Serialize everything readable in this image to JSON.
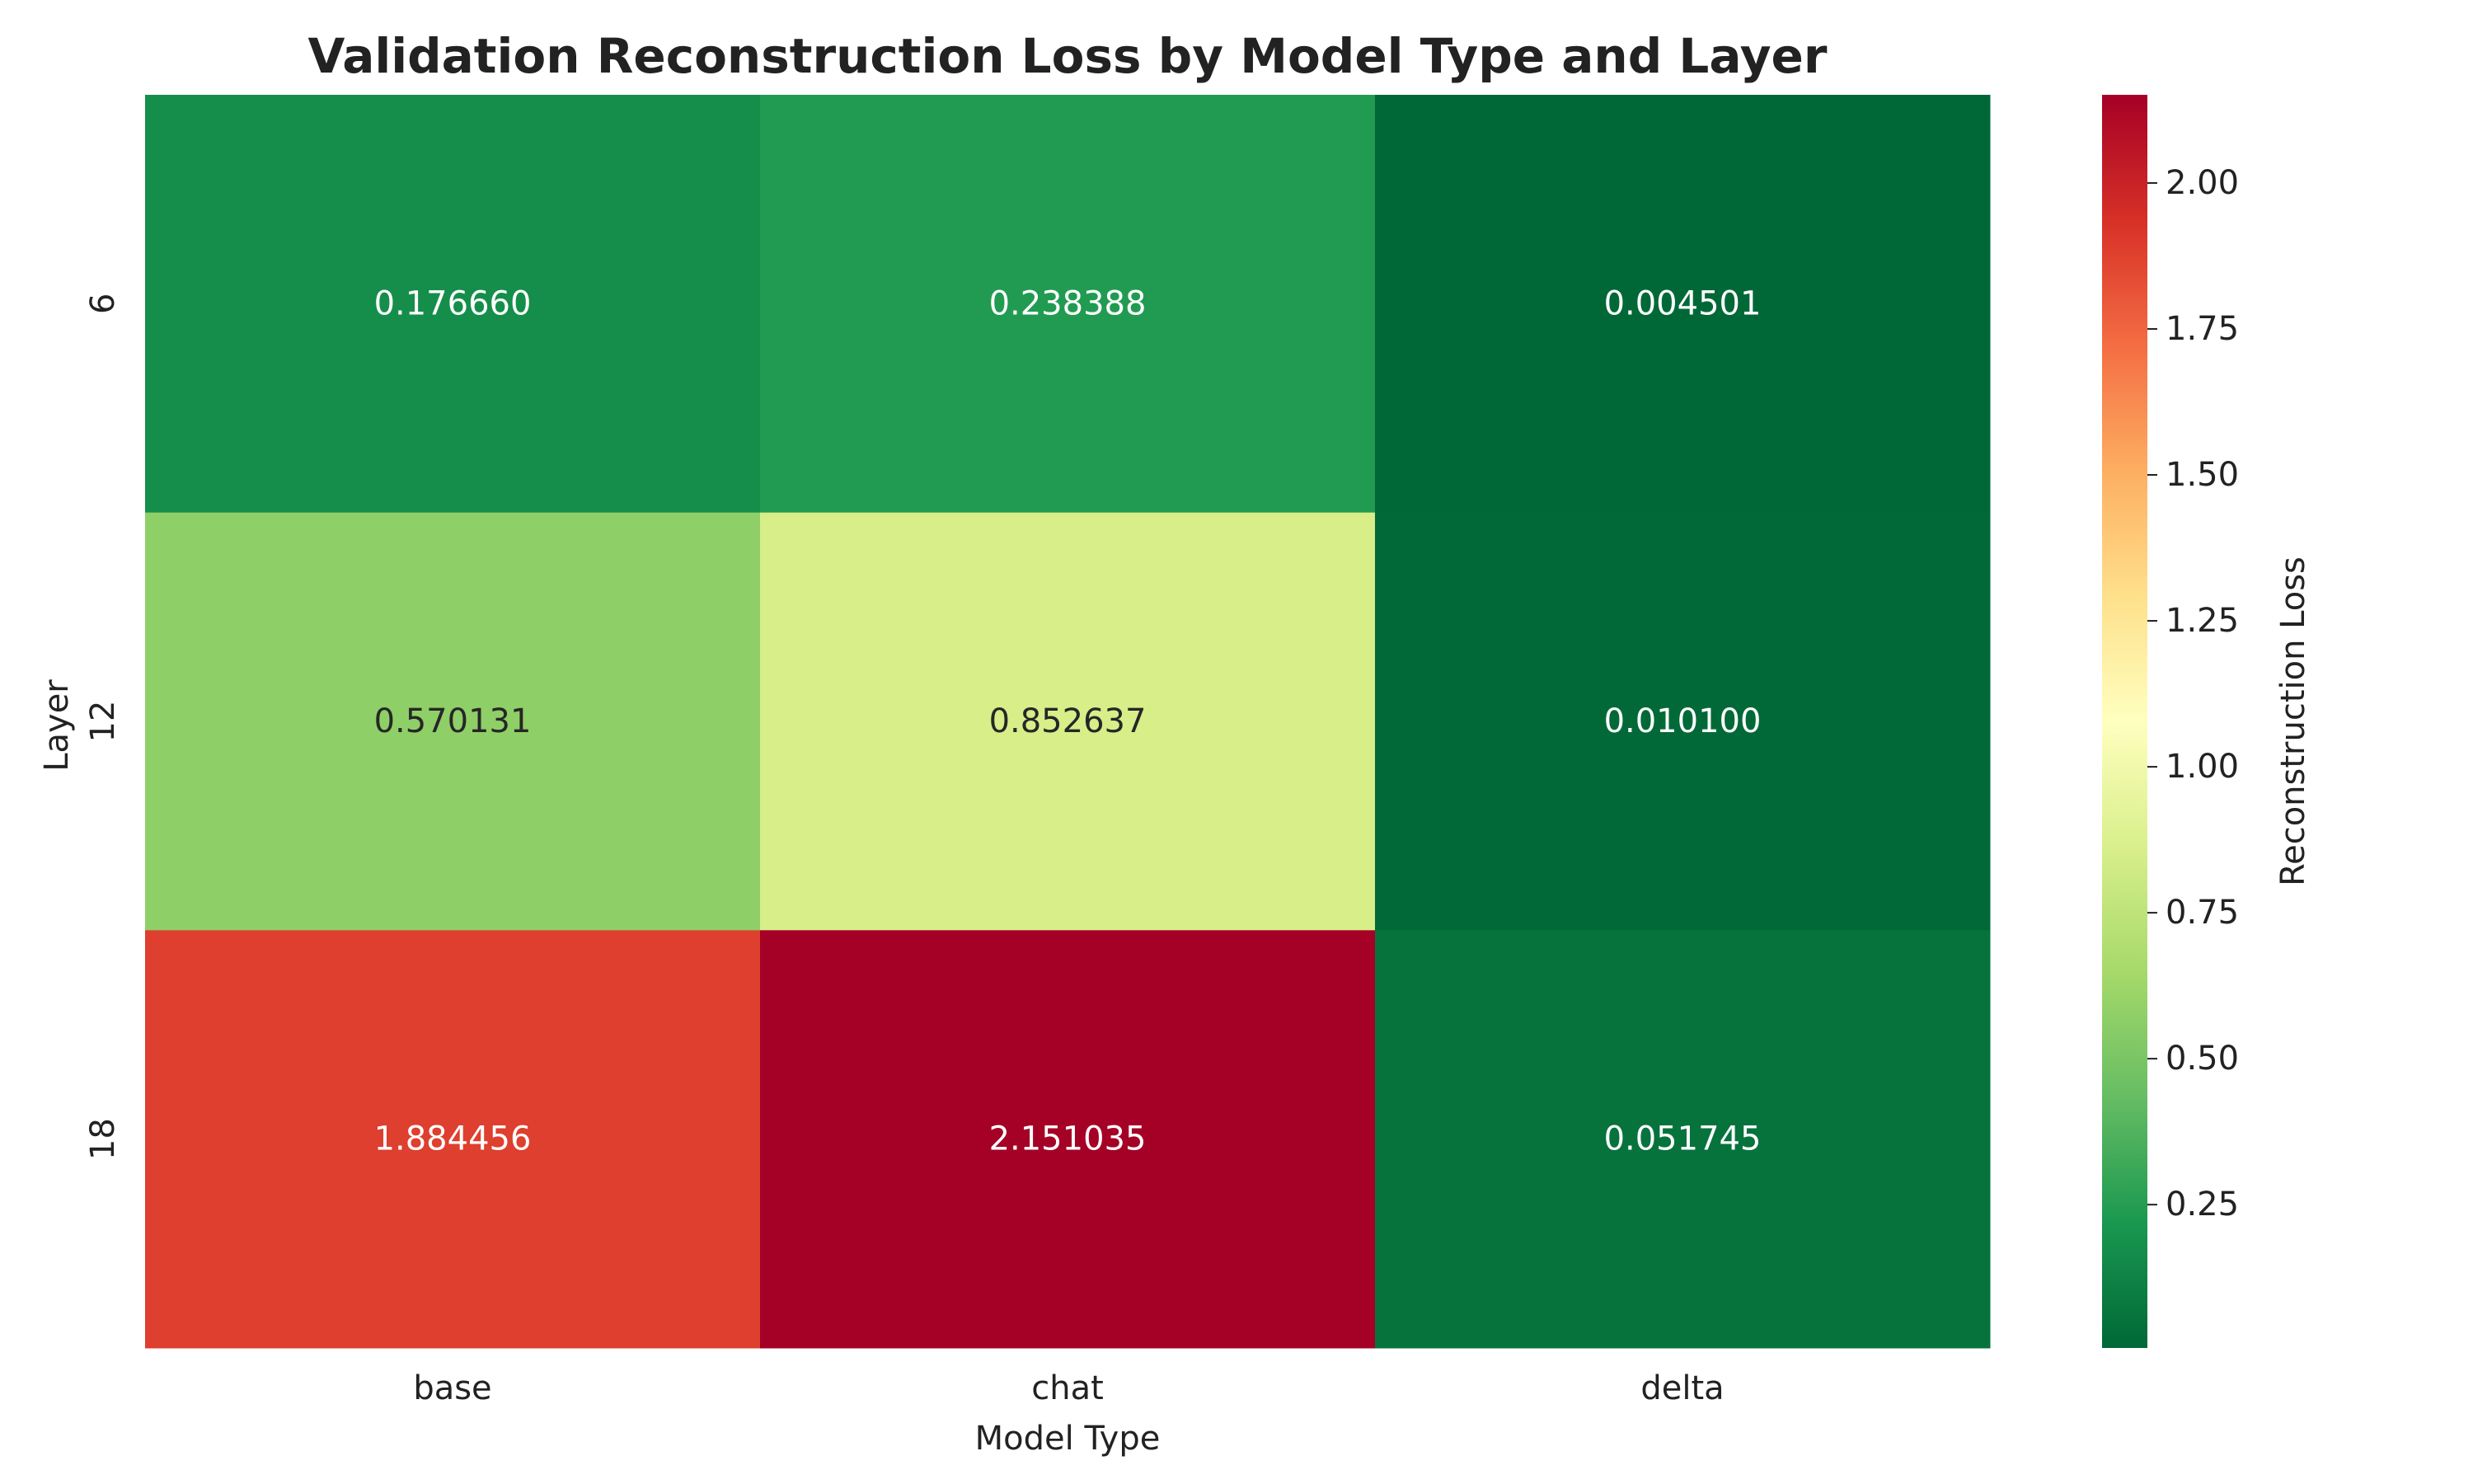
{
  "chart_data": {
    "type": "heatmap",
    "title": "Validation Reconstruction Loss by Model Type and Layer",
    "xlabel": "Model Type",
    "ylabel": "Layer",
    "x_categories": [
      "base",
      "chat",
      "delta"
    ],
    "y_categories": [
      "6",
      "12",
      "18"
    ],
    "values": [
      [
        0.17666,
        0.238388,
        0.004501
      ],
      [
        0.570131,
        0.852637,
        0.0101
      ],
      [
        1.884456,
        2.151035,
        0.051745
      ]
    ],
    "value_labels": [
      [
        "0.176660",
        "0.238388",
        "0.004501"
      ],
      [
        "0.570131",
        "0.852637",
        "0.010100"
      ],
      [
        "1.884456",
        "2.151035",
        "0.051745"
      ]
    ],
    "colormap": "RdYlGn_r",
    "colormap_stops": [
      "#006837",
      "#1a9850",
      "#66bd63",
      "#a6d96a",
      "#d9ef8b",
      "#ffffbf",
      "#fee08b",
      "#fdae61",
      "#f46d43",
      "#d73027",
      "#a50026"
    ],
    "colorbar": {
      "label": "Reconstruction Loss",
      "vmin": 0.004501,
      "vmax": 2.151035,
      "ticks": [
        0.25,
        0.5,
        0.75,
        1.0,
        1.25,
        1.5,
        1.75,
        2.0
      ],
      "tick_labels": [
        "0.25",
        "0.50",
        "0.75",
        "1.00",
        "1.25",
        "1.50",
        "1.75",
        "2.00"
      ]
    },
    "grid": false,
    "legend": "colorbar-right"
  }
}
